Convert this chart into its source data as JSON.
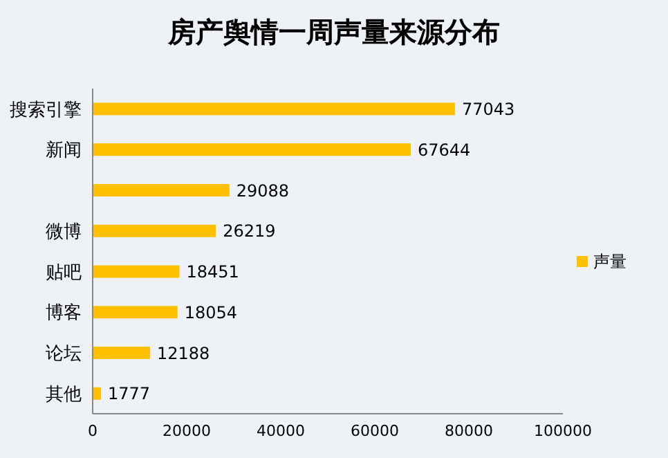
{
  "chart_data": {
    "type": "bar",
    "orientation": "horizontal",
    "title": "房产舆情一周声量来源分布",
    "categories": [
      "搜索引擎",
      "新闻",
      null,
      "微博",
      "贴吧",
      "博客",
      "论坛",
      "其他"
    ],
    "series": [
      {
        "name": "声量",
        "color": "#ffc000",
        "values": [
          77043,
          67644,
          29088,
          26219,
          18451,
          18054,
          12188,
          1777
        ]
      }
    ],
    "xlim": [
      0,
      100000
    ],
    "xticks": [
      0,
      20000,
      40000,
      60000,
      80000,
      100000
    ],
    "data_labels": true,
    "legend": "right",
    "grid": false
  }
}
